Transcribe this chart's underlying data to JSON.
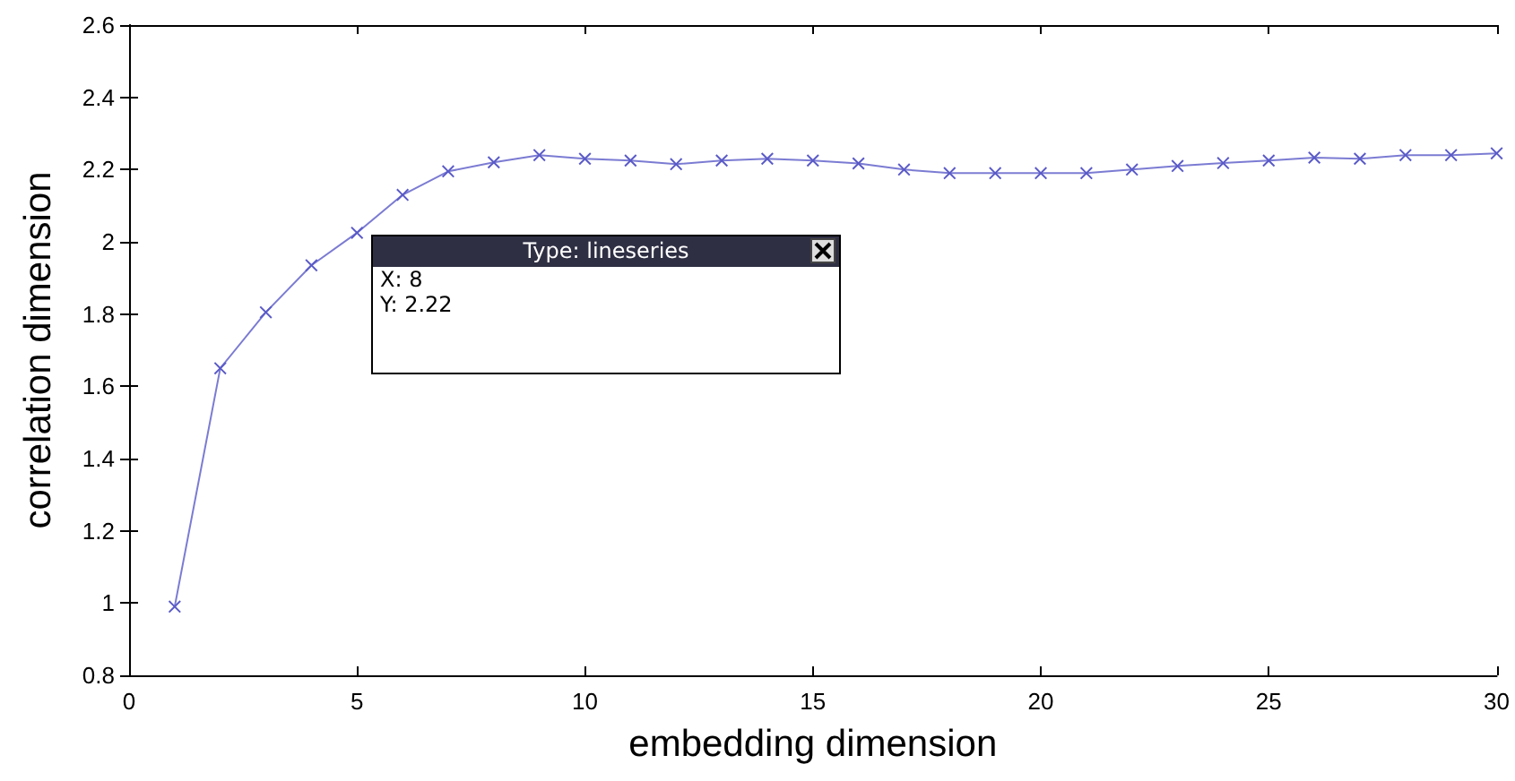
{
  "chart_data": {
    "type": "line",
    "xlabel": "embedding dimension",
    "ylabel": "correlation dimension",
    "x": [
      1,
      2,
      3,
      4,
      5,
      6,
      7,
      8,
      9,
      10,
      11,
      12,
      13,
      14,
      15,
      16,
      17,
      18,
      19,
      20,
      21,
      22,
      23,
      24,
      25,
      26,
      27,
      28,
      29,
      30
    ],
    "series": [
      {
        "color": "#5a5ac8",
        "values": [
          0.99,
          1.65,
          1.805,
          1.935,
          2.025,
          2.13,
          2.195,
          2.22,
          2.24,
          2.23,
          2.225,
          2.215,
          2.225,
          2.23,
          2.225,
          2.217,
          2.2,
          2.19,
          2.19,
          2.19,
          2.19,
          2.2,
          2.21,
          2.218,
          2.225,
          2.233,
          2.23,
          2.24,
          2.24,
          2.245
        ]
      }
    ],
    "xlim": [
      0,
      30
    ],
    "xticks": [
      0,
      5,
      10,
      15,
      20,
      25,
      30
    ],
    "ylim": [
      0.8,
      2.6
    ],
    "yticks": [
      0.8,
      1,
      1.2,
      1.4,
      1.6,
      1.8,
      2,
      2.2,
      2.4,
      2.6
    ],
    "marker": "cross",
    "line_style": "solid",
    "grid": false,
    "annotations": [
      "Type: lineseries",
      "X: 8",
      "Y: 2.22"
    ]
  }
}
